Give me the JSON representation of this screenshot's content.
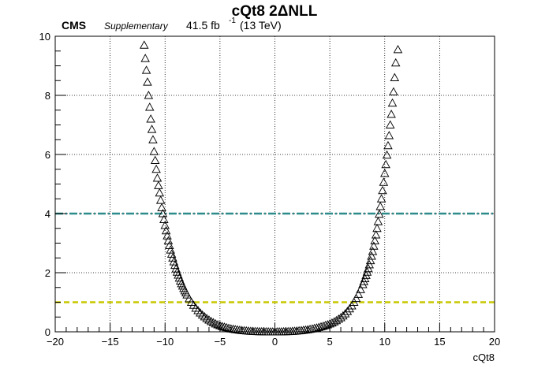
{
  "chart_data": {
    "type": "scatter",
    "title": "cQt8 2ΔNLL",
    "header": {
      "experiment": "CMS",
      "label": "Supplementary",
      "lumi_value": "41.5 fb",
      "lumi_exp": "-1",
      "energy": "(13 TeV)"
    },
    "xlabel": "cQt8",
    "ylabel": "",
    "xlim": [
      -20,
      20
    ],
    "ylim": [
      0,
      10
    ],
    "x_ticks": [
      "−20",
      "−15",
      "−10",
      "−5",
      "0",
      "5",
      "10",
      "15",
      "20"
    ],
    "y_ticks": [
      "0",
      "2",
      "4",
      "6",
      "8",
      "10"
    ],
    "grid": true,
    "marker": "open-triangle",
    "reference_lines": [
      {
        "y": 4,
        "style": "dash-dot",
        "color": "#2e8b8b"
      },
      {
        "y": 1,
        "style": "dashed",
        "color": "#c8c800"
      }
    ],
    "series": [
      {
        "points": [
          [
            -11.9,
            9.7
          ],
          [
            -11.8,
            9.25
          ],
          [
            -11.7,
            8.85
          ],
          [
            -11.6,
            8.45
          ],
          [
            -11.5,
            8.0
          ],
          [
            -11.4,
            7.6
          ],
          [
            -11.3,
            7.2
          ],
          [
            -11.2,
            6.85
          ],
          [
            -11.1,
            6.5
          ],
          [
            -11.0,
            6.1
          ],
          [
            -10.9,
            5.8
          ],
          [
            -10.8,
            5.5
          ],
          [
            -10.7,
            5.2
          ],
          [
            -10.6,
            4.95
          ],
          [
            -10.5,
            4.7
          ],
          [
            -10.4,
            4.45
          ],
          [
            -10.3,
            4.2
          ],
          [
            -10.2,
            4.0
          ],
          [
            -10.1,
            3.8
          ],
          [
            -10.0,
            3.6
          ],
          [
            -9.9,
            3.42
          ],
          [
            -9.8,
            3.25
          ],
          [
            -9.7,
            3.08
          ],
          [
            -9.6,
            2.92
          ],
          [
            -9.5,
            2.77
          ],
          [
            -9.4,
            2.63
          ],
          [
            -9.3,
            2.5
          ],
          [
            -9.2,
            2.37
          ],
          [
            -9.1,
            2.25
          ],
          [
            -9.0,
            2.13
          ],
          [
            -8.9,
            2.02
          ],
          [
            -8.8,
            1.92
          ],
          [
            -8.7,
            1.82
          ],
          [
            -8.6,
            1.72
          ],
          [
            -8.5,
            1.63
          ],
          [
            -8.4,
            1.55
          ],
          [
            -8.3,
            1.47
          ],
          [
            -8.2,
            1.39
          ],
          [
            -8.1,
            1.32
          ],
          [
            -8.0,
            1.25
          ],
          [
            -7.8,
            1.12
          ],
          [
            -7.6,
            1.0
          ],
          [
            -7.4,
            0.9
          ],
          [
            -7.2,
            0.8
          ],
          [
            -7.0,
            0.72
          ],
          [
            -6.8,
            0.64
          ],
          [
            -6.6,
            0.57
          ],
          [
            -6.4,
            0.51
          ],
          [
            -6.2,
            0.45
          ],
          [
            -6.0,
            0.4
          ],
          [
            -5.8,
            0.35
          ],
          [
            -5.6,
            0.31
          ],
          [
            -5.4,
            0.27
          ],
          [
            -5.2,
            0.24
          ],
          [
            -5.0,
            0.21
          ],
          [
            -4.8,
            0.18
          ],
          [
            -4.6,
            0.16
          ],
          [
            -4.4,
            0.14
          ],
          [
            -4.2,
            0.12
          ],
          [
            -4.0,
            0.1
          ],
          [
            -3.8,
            0.09
          ],
          [
            -3.6,
            0.075
          ],
          [
            -3.4,
            0.065
          ],
          [
            -3.2,
            0.055
          ],
          [
            -3.0,
            0.045
          ],
          [
            -2.8,
            0.038
          ],
          [
            -2.6,
            0.031
          ],
          [
            -2.4,
            0.025
          ],
          [
            -2.2,
            0.02
          ],
          [
            -2.0,
            0.016
          ],
          [
            -1.8,
            0.012
          ],
          [
            -1.6,
            0.009
          ],
          [
            -1.4,
            0.007
          ],
          [
            -1.2,
            0.005
          ],
          [
            -1.0,
            0.003
          ],
          [
            -0.8,
            0.002
          ],
          [
            -0.6,
            0.001
          ],
          [
            -0.4,
            0.0
          ],
          [
            -0.2,
            0.0
          ],
          [
            0.0,
            0.0
          ],
          [
            0.2,
            0.0
          ],
          [
            0.4,
            0.001
          ],
          [
            0.6,
            0.002
          ],
          [
            0.8,
            0.004
          ],
          [
            1.0,
            0.006
          ],
          [
            1.2,
            0.009
          ],
          [
            1.4,
            0.013
          ],
          [
            1.6,
            0.017
          ],
          [
            1.8,
            0.022
          ],
          [
            2.0,
            0.028
          ],
          [
            2.2,
            0.035
          ],
          [
            2.4,
            0.043
          ],
          [
            2.6,
            0.052
          ],
          [
            2.8,
            0.062
          ],
          [
            3.0,
            0.073
          ],
          [
            3.2,
            0.085
          ],
          [
            3.4,
            0.1
          ],
          [
            3.6,
            0.115
          ],
          [
            3.8,
            0.132
          ],
          [
            4.0,
            0.15
          ],
          [
            4.2,
            0.17
          ],
          [
            4.4,
            0.19
          ],
          [
            4.6,
            0.215
          ],
          [
            4.8,
            0.24
          ],
          [
            5.0,
            0.27
          ],
          [
            5.2,
            0.3
          ],
          [
            5.4,
            0.34
          ],
          [
            5.6,
            0.38
          ],
          [
            5.8,
            0.43
          ],
          [
            6.0,
            0.48
          ],
          [
            6.2,
            0.54
          ],
          [
            6.4,
            0.61
          ],
          [
            6.6,
            0.69
          ],
          [
            6.8,
            0.78
          ],
          [
            7.0,
            0.88
          ],
          [
            7.2,
            1.0
          ],
          [
            7.4,
            1.13
          ],
          [
            7.6,
            1.27
          ],
          [
            7.8,
            1.43
          ],
          [
            8.0,
            1.6
          ],
          [
            8.1,
            1.7
          ],
          [
            8.2,
            1.8
          ],
          [
            8.3,
            1.91
          ],
          [
            8.4,
            2.02
          ],
          [
            8.5,
            2.14
          ],
          [
            8.6,
            2.27
          ],
          [
            8.7,
            2.41
          ],
          [
            8.8,
            2.56
          ],
          [
            8.9,
            2.72
          ],
          [
            9.0,
            2.9
          ],
          [
            9.1,
            3.08
          ],
          [
            9.2,
            3.28
          ],
          [
            9.3,
            3.5
          ],
          [
            9.4,
            3.73
          ],
          [
            9.5,
            3.98
          ],
          [
            9.6,
            4.24
          ],
          [
            9.7,
            4.5
          ],
          [
            9.8,
            4.78
          ],
          [
            9.9,
            5.06
          ],
          [
            10.0,
            5.36
          ],
          [
            10.1,
            5.66
          ],
          [
            10.2,
            5.98
          ],
          [
            10.3,
            6.3
          ],
          [
            10.4,
            6.64
          ],
          [
            10.5,
            7.0
          ],
          [
            10.6,
            7.36
          ],
          [
            10.7,
            7.74
          ],
          [
            10.8,
            8.12
          ],
          [
            10.9,
            8.6
          ],
          [
            11.0,
            9.1
          ],
          [
            11.2,
            9.55
          ]
        ]
      }
    ]
  }
}
